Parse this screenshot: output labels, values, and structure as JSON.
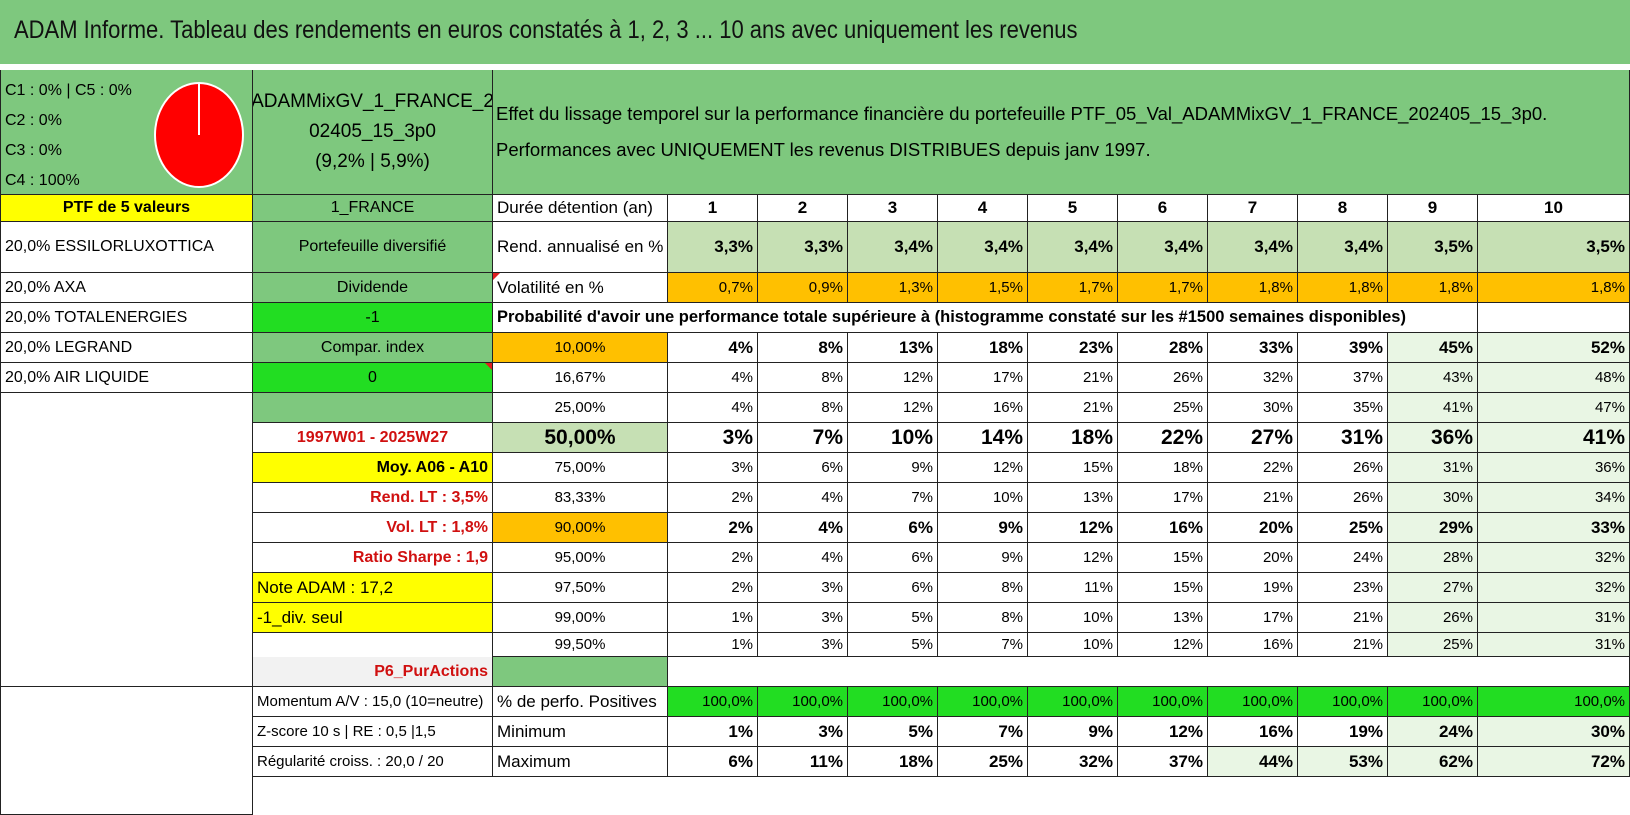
{
  "title": "ADAM Informe. Tableau des rendements en euros constatés à 1, 2, 3 ... 10 ans avec uniquement les revenus",
  "colors": {
    "header_green": "#7ec87e",
    "light_green": "#c6e0b4",
    "very_light_green": "#e9f6e4",
    "bright_green": "#22dd22",
    "yellow": "#ffff00",
    "orange": "#ffc000",
    "red_text": "#d01010",
    "pie_red": "#ff0000"
  },
  "pie": {
    "legend": [
      "C1 : 0% | C5 : 0%",
      "C2 : 0%",
      "C3 : 0%",
      "C4 : 100%"
    ],
    "values": [
      0,
      0,
      0,
      100,
      0
    ],
    "dominant_color": "red"
  },
  "portfolio": {
    "name": "ADAMMixGV_1_FRANCE_202405_15_3p0",
    "name_line1": "ADAMMixGV_1_FRANCE_2",
    "name_line2": "02405_15_3p0",
    "perf": "(9,2% | 5,9%)"
  },
  "description": {
    "line1": "Effet du lissage temporel sur la performance financière du portefeuille PTF_05_Val_ADAMMixGV_1_FRANCE_202405_15_3p0.",
    "line2": "Performances avec UNIQUEMENT les revenus DISTRIBUES depuis janv 1997."
  },
  "left": {
    "ptf_label": "PTF de 5 valeurs",
    "holdings": [
      "20,0% ESSILORLUXOTTICA",
      "20,0% AXA",
      "20,0% TOTALENERGIES",
      "20,0% LEGRAND",
      "20,0% AIR LIQUIDE"
    ]
  },
  "mid": {
    "country": "1_FRANCE",
    "type": "Portefeuille diversifié",
    "dividende_label": "Dividende",
    "dividende_value": "-1",
    "compar_label": "Compar. index",
    "compar_value": "0",
    "period": "1997W01 - 2025W27",
    "moy": "Moy. A06 - A10",
    "rend_lt": "Rend. LT : 3,5%",
    "vol_lt": "Vol. LT : 1,8%",
    "sharpe": "Ratio Sharpe : 1,9",
    "note": "Note ADAM : 17,2",
    "div_seul": "-1_div. seul",
    "p6": "P6_PurActions",
    "momentum": "Momentum A/V : 15,0 (10=neutre)",
    "zscore": "Z-score 10 s | RE : 0,5 |1,5",
    "regularite": "Régularité croiss. : 20,0 / 20"
  },
  "table": {
    "duree_label": "Durée détention (an)",
    "years": [
      "1",
      "2",
      "3",
      "4",
      "5",
      "6",
      "7",
      "8",
      "9",
      "10"
    ],
    "rend_label": "Rend. annualisé en %",
    "rend": [
      "3,3%",
      "3,3%",
      "3,4%",
      "3,4%",
      "3,4%",
      "3,4%",
      "3,4%",
      "3,4%",
      "3,5%",
      "3,5%"
    ],
    "vol_label": "Volatilité en %",
    "vol": [
      "0,7%",
      "0,9%",
      "1,3%",
      "1,5%",
      "1,7%",
      "1,7%",
      "1,8%",
      "1,8%",
      "1,8%",
      "1,8%"
    ],
    "prob_header": "Probabilité d'avoir une performance totale supérieure à (histogramme constaté sur les #1500 semaines disponibles)",
    "prob_rows": [
      {
        "label": "10,00%",
        "values": [
          "4%",
          "8%",
          "13%",
          "18%",
          "23%",
          "28%",
          "33%",
          "39%",
          "45%",
          "52%"
        ]
      },
      {
        "label": "16,67%",
        "values": [
          "4%",
          "8%",
          "12%",
          "17%",
          "21%",
          "26%",
          "32%",
          "37%",
          "43%",
          "48%"
        ]
      },
      {
        "label": "25,00%",
        "values": [
          "4%",
          "8%",
          "12%",
          "16%",
          "21%",
          "25%",
          "30%",
          "35%",
          "41%",
          "47%"
        ]
      },
      {
        "label": "50,00%",
        "values": [
          "3%",
          "7%",
          "10%",
          "14%",
          "18%",
          "22%",
          "27%",
          "31%",
          "36%",
          "41%"
        ]
      },
      {
        "label": "75,00%",
        "values": [
          "3%",
          "6%",
          "9%",
          "12%",
          "15%",
          "18%",
          "22%",
          "26%",
          "31%",
          "36%"
        ]
      },
      {
        "label": "83,33%",
        "values": [
          "2%",
          "4%",
          "7%",
          "10%",
          "13%",
          "17%",
          "21%",
          "26%",
          "30%",
          "34%"
        ]
      },
      {
        "label": "90,00%",
        "values": [
          "2%",
          "4%",
          "6%",
          "9%",
          "12%",
          "16%",
          "20%",
          "25%",
          "29%",
          "33%"
        ]
      },
      {
        "label": "95,00%",
        "values": [
          "2%",
          "4%",
          "6%",
          "9%",
          "12%",
          "15%",
          "20%",
          "24%",
          "28%",
          "32%"
        ]
      },
      {
        "label": "97,50%",
        "values": [
          "2%",
          "3%",
          "6%",
          "8%",
          "11%",
          "15%",
          "19%",
          "23%",
          "27%",
          "32%"
        ]
      },
      {
        "label": "99,00%",
        "values": [
          "1%",
          "3%",
          "5%",
          "8%",
          "10%",
          "13%",
          "17%",
          "21%",
          "26%",
          "31%"
        ]
      },
      {
        "label": "99,50%",
        "values": [
          "1%",
          "3%",
          "5%",
          "7%",
          "10%",
          "12%",
          "16%",
          "21%",
          "25%",
          "31%"
        ]
      }
    ],
    "pos_label": "% de perfo. Positives",
    "pos": [
      "100,0%",
      "100,0%",
      "100,0%",
      "100,0%",
      "100,0%",
      "100,0%",
      "100,0%",
      "100,0%",
      "100,0%",
      "100,0%"
    ],
    "min_label": "Minimum",
    "min": [
      "1%",
      "3%",
      "5%",
      "7%",
      "9%",
      "12%",
      "16%",
      "19%",
      "24%",
      "30%"
    ],
    "max_label": "Maximum",
    "max": [
      "6%",
      "11%",
      "18%",
      "25%",
      "32%",
      "37%",
      "44%",
      "53%",
      "62%",
      "72%"
    ]
  }
}
